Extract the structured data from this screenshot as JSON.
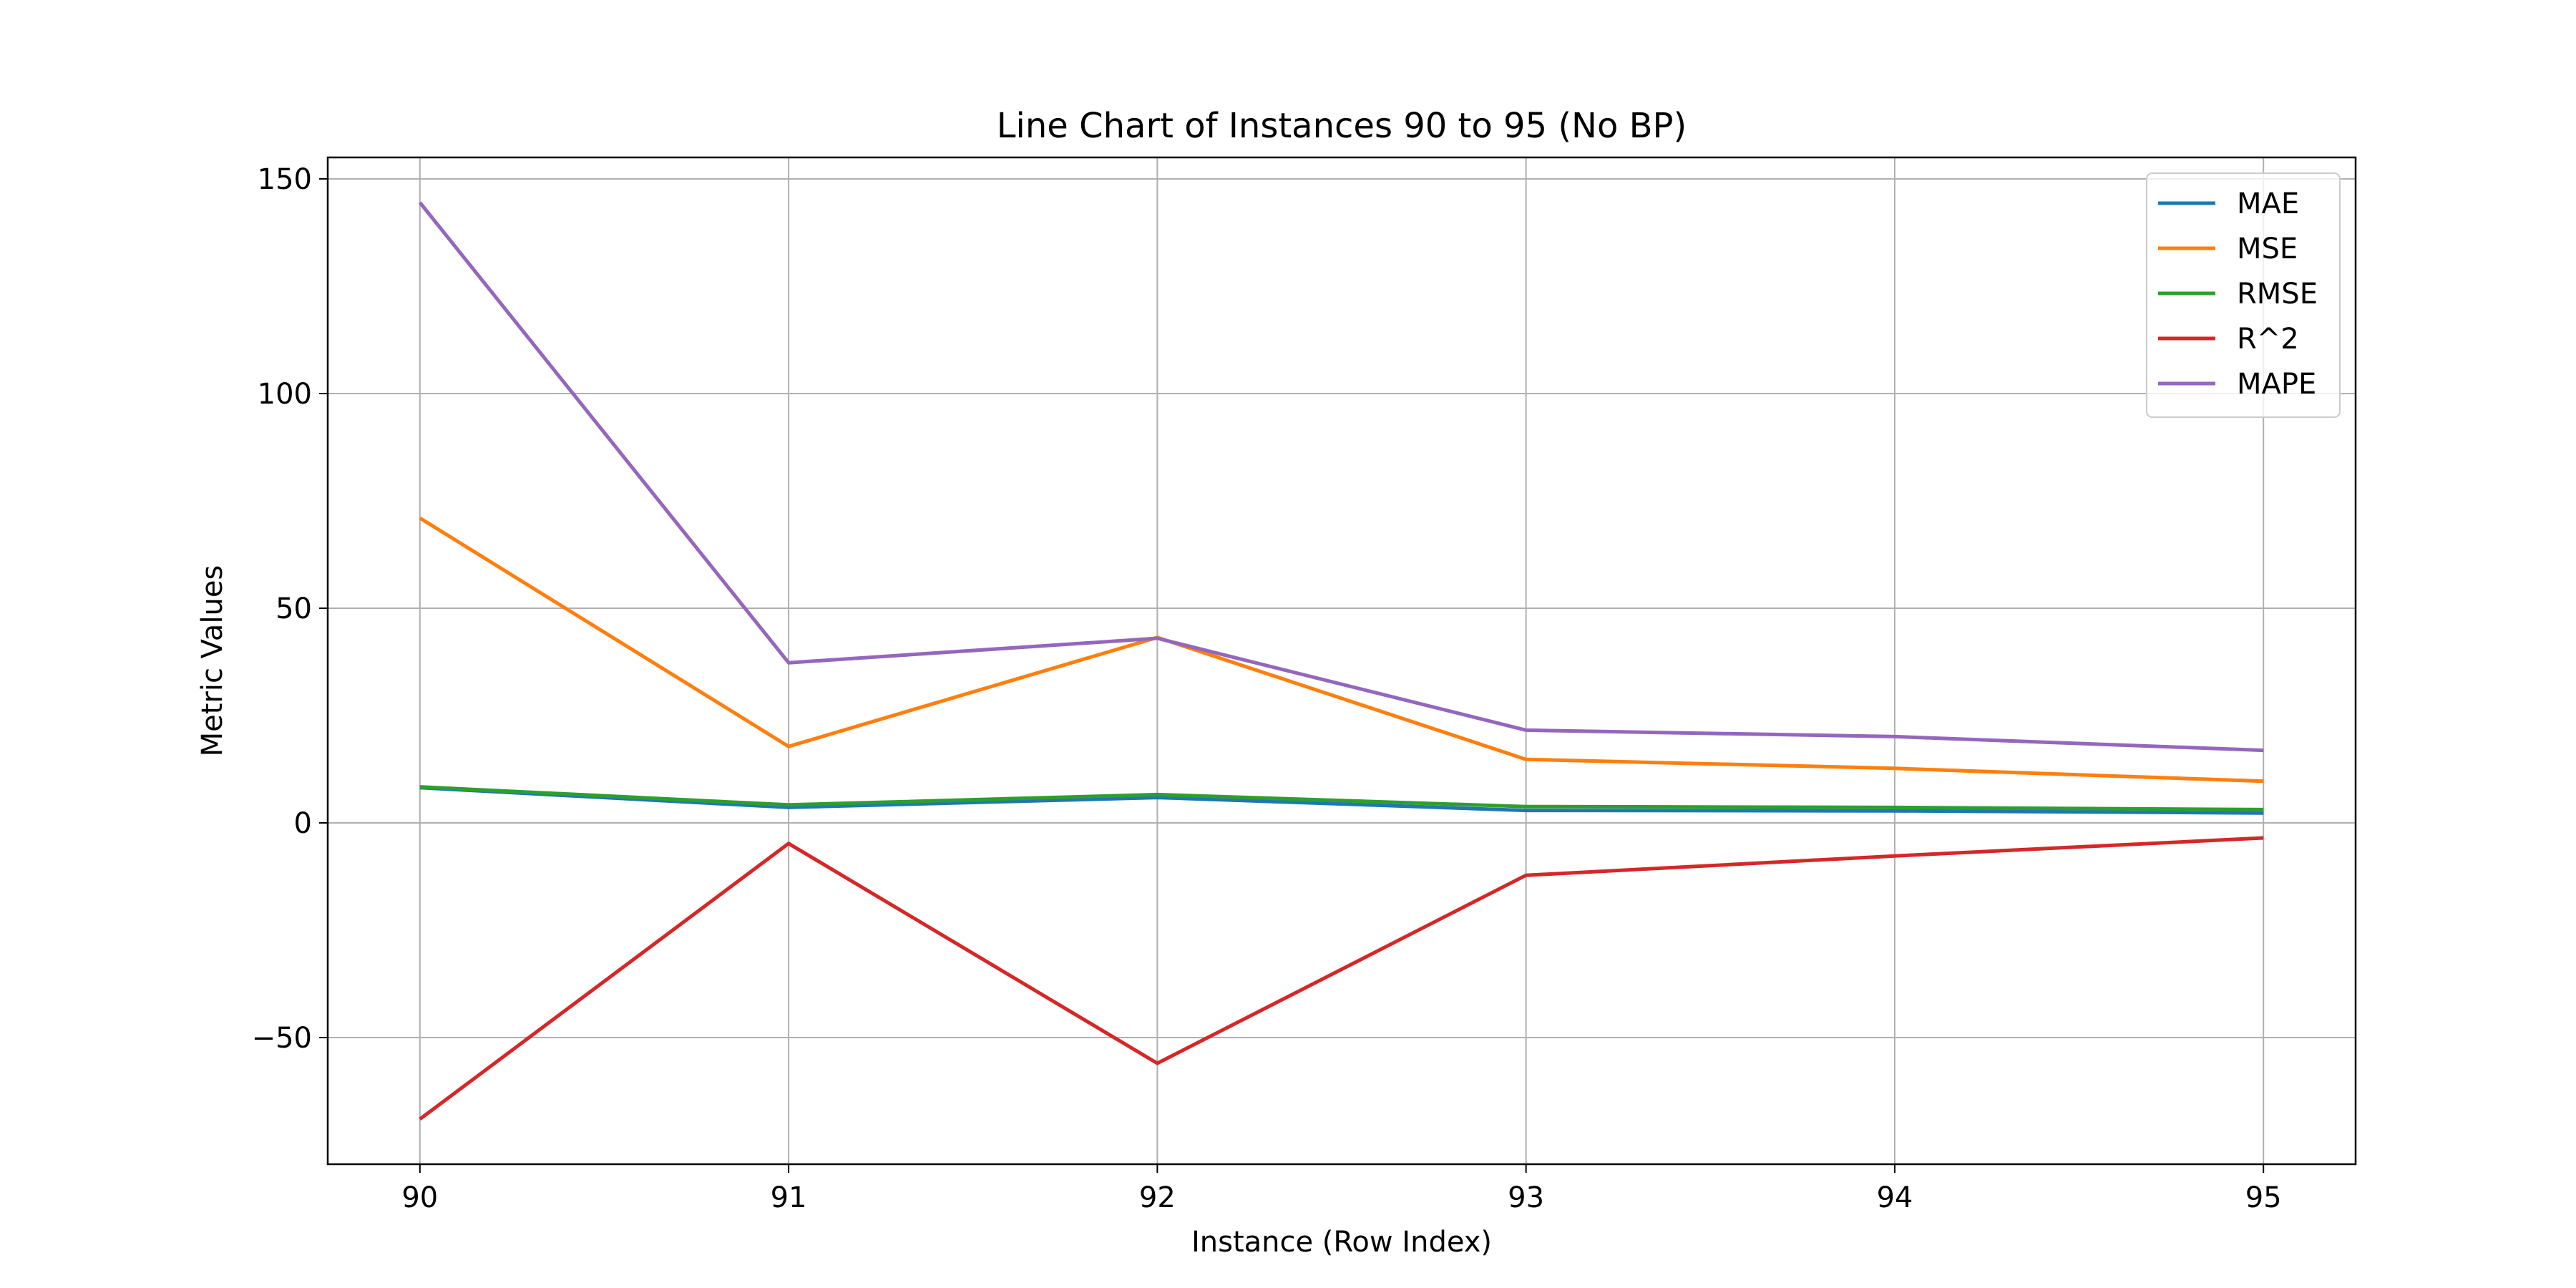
{
  "chart_data": {
    "type": "line",
    "title": "Line Chart of Instances 90 to 95 (No BP)",
    "xlabel": "Instance (Row Index)",
    "ylabel": "Metric Values",
    "x": [
      90,
      91,
      92,
      93,
      94,
      95
    ],
    "xticks": [
      "90",
      "91",
      "92",
      "93",
      "94",
      "95"
    ],
    "yticks": [
      -50,
      0,
      50,
      100,
      150
    ],
    "yticks_labels": [
      "−50",
      "0",
      "50",
      "100",
      "150"
    ],
    "xlim": [
      89.75,
      95.25
    ],
    "ylim": [
      -79.5,
      155
    ],
    "grid": true,
    "legend_position": "top-right",
    "series": [
      {
        "name": "MAE",
        "color": "#1f77b4",
        "values": [
          8.2,
          3.6,
          5.9,
          2.9,
          2.8,
          2.3
        ]
      },
      {
        "name": "MSE",
        "color": "#ff7f0e",
        "values": [
          71,
          17.8,
          43.2,
          14.8,
          12.7,
          9.7
        ]
      },
      {
        "name": "RMSE",
        "color": "#2ca02c",
        "values": [
          8.4,
          4.2,
          6.6,
          3.8,
          3.6,
          3.1
        ]
      },
      {
        "name": "R^2",
        "color": "#d62728",
        "values": [
          -69,
          -4.8,
          -56,
          -12.2,
          -7.7,
          -3.5
        ]
      },
      {
        "name": "MAPE",
        "color": "#9467bd",
        "values": [
          144.5,
          37.3,
          43,
          21.6,
          20.1,
          16.9
        ]
      }
    ]
  }
}
